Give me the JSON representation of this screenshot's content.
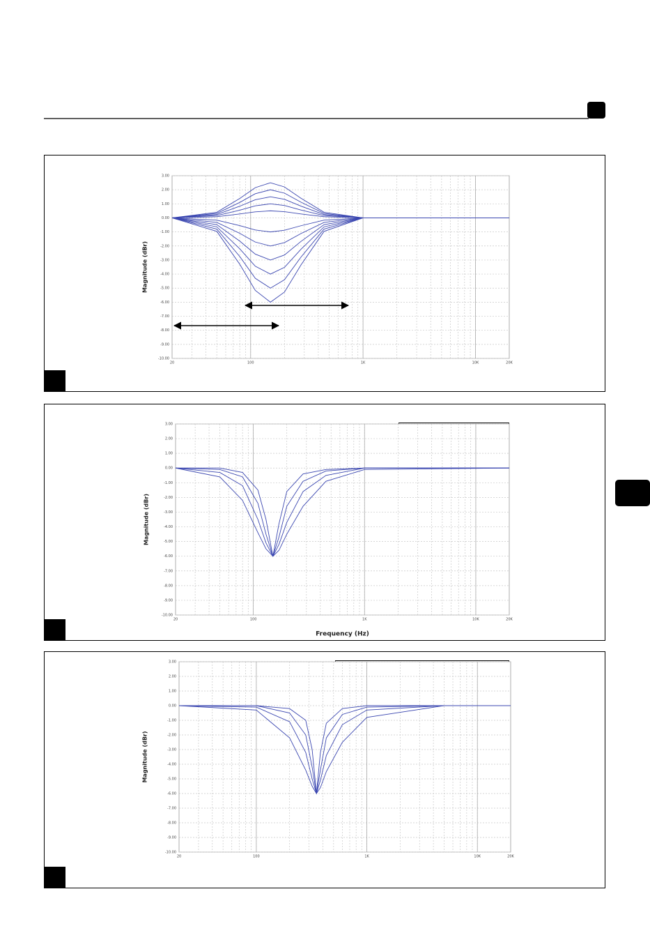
{
  "chart_data": [
    {
      "type": "line",
      "y_label": "Magnitude (dBr)",
      "log_x": true,
      "grid": true,
      "xlim": [
        20,
        20000
      ],
      "ylim": [
        -10,
        3
      ],
      "xticks": [
        20,
        100,
        {
          "value": 1000,
          "label": "1K"
        },
        {
          "value": 10000,
          "label": "10K"
        },
        {
          "value": 20000,
          "label": "20K"
        }
      ],
      "yticks": [
        {
          "value": 3,
          "label": "3.00"
        },
        {
          "value": 2,
          "label": "2.00"
        },
        {
          "value": 1,
          "label": "1.00"
        },
        {
          "value": 0,
          "label": "0.00"
        },
        {
          "value": -1,
          "label": "-1.00"
        },
        {
          "value": -2,
          "label": "-2.00"
        },
        {
          "value": -3,
          "label": "-3.00"
        },
        {
          "value": -4,
          "label": "-4.00"
        },
        {
          "value": -5,
          "label": "-5.00"
        },
        {
          "value": -6,
          "label": "-6.00"
        },
        {
          "value": -7,
          "label": "-7.00"
        },
        {
          "value": -8,
          "label": "-8.00"
        },
        {
          "value": -9,
          "label": "-9.00"
        },
        {
          "value": -10,
          "label": "-10.00"
        }
      ],
      "x": [
        20,
        50,
        80,
        110,
        150,
        200,
        280,
        450,
        1000,
        20000
      ],
      "series": [
        {
          "color": "#3a46b0",
          "values": [
            0,
            0.4,
            1.38,
            2.15,
            2.5,
            2.2,
            1.4,
            0.4,
            0,
            0
          ]
        },
        {
          "color": "#3a46b0",
          "values": [
            0,
            0.32,
            1.1,
            1.72,
            2,
            1.76,
            1.12,
            0.32,
            0,
            0
          ]
        },
        {
          "color": "#3a46b0",
          "values": [
            0,
            0.24,
            0.83,
            1.29,
            1.5,
            1.32,
            0.84,
            0.24,
            0,
            0
          ]
        },
        {
          "color": "#3a46b0",
          "values": [
            0,
            0.16,
            0.55,
            0.86,
            1,
            0.88,
            0.56,
            0.16,
            0,
            0
          ]
        },
        {
          "color": "#3a46b0",
          "values": [
            0,
            0.08,
            0.28,
            0.43,
            0.5,
            0.44,
            0.28,
            0.08,
            0,
            0
          ]
        },
        {
          "color": "#3a46b0",
          "values": [
            0,
            -0.16,
            -0.55,
            -0.86,
            -1,
            -0.88,
            -0.56,
            -0.16,
            0,
            0
          ]
        },
        {
          "color": "#3a46b0",
          "values": [
            0,
            -0.32,
            -1.1,
            -1.72,
            -2,
            -1.76,
            -1.12,
            -0.32,
            0,
            0
          ]
        },
        {
          "color": "#3a46b0",
          "values": [
            0,
            -0.48,
            -1.65,
            -2.58,
            -3,
            -2.64,
            -1.68,
            -0.48,
            0,
            0
          ]
        },
        {
          "color": "#3a46b0",
          "values": [
            0,
            -0.64,
            -2.2,
            -3.44,
            -4,
            -3.52,
            -2.24,
            -0.64,
            0,
            0
          ]
        },
        {
          "color": "#3a46b0",
          "values": [
            0,
            -0.8,
            -2.75,
            -4.3,
            -5,
            -4.4,
            -2.8,
            -0.8,
            0,
            0
          ]
        },
        {
          "color": "#3a46b0",
          "values": [
            0,
            -0.96,
            -3.3,
            -5.16,
            -6,
            -5.28,
            -3.36,
            -0.96,
            0,
            0
          ]
        }
      ]
    },
    {
      "type": "line",
      "y_label": "Magnitude (dBr)",
      "x_label": "Frequency (Hz)",
      "log_x": true,
      "grid": true,
      "xlim": [
        20,
        20000
      ],
      "ylim": [
        -10,
        3
      ],
      "xticks": [
        20,
        100,
        {
          "value": 1000,
          "label": "1K"
        },
        {
          "value": 10000,
          "label": "10K"
        },
        {
          "value": 20000,
          "label": "20K"
        }
      ],
      "yticks": [
        {
          "value": 3,
          "label": "3.00"
        },
        {
          "value": 2,
          "label": "2.00"
        },
        {
          "value": 1,
          "label": "1.00"
        },
        {
          "value": 0,
          "label": "0.00"
        },
        {
          "value": -1,
          "label": "-1.00"
        },
        {
          "value": -2,
          "label": "-2.00"
        },
        {
          "value": -3,
          "label": "-3.00"
        },
        {
          "value": -4,
          "label": "-4.00"
        },
        {
          "value": -5,
          "label": "-5.00"
        },
        {
          "value": -6,
          "label": "-6.00"
        },
        {
          "value": -7,
          "label": "-7.00"
        },
        {
          "value": -8,
          "label": "-8.00"
        },
        {
          "value": -9,
          "label": "-9.00"
        },
        {
          "value": -10,
          "label": "-10.00"
        }
      ],
      "x": [
        20,
        50,
        80,
        110,
        130,
        150,
        170,
        200,
        280,
        450,
        1000,
        20000
      ],
      "series": [
        {
          "color": "#3a46b0",
          "values": [
            0,
            0,
            -0.3,
            -1.5,
            -3.5,
            -6,
            -3.8,
            -1.6,
            -0.4,
            -0.1,
            0,
            0
          ]
        },
        {
          "color": "#3a46b0",
          "values": [
            0,
            -0.1,
            -0.6,
            -2.4,
            -4.5,
            -6,
            -4.7,
            -2.6,
            -0.9,
            -0.2,
            0,
            0
          ]
        },
        {
          "color": "#3a46b0",
          "values": [
            0,
            -0.3,
            -1.2,
            -3.5,
            -5.1,
            -6,
            -5.2,
            -3.7,
            -1.6,
            -0.5,
            0,
            0
          ]
        },
        {
          "color": "#3a46b0",
          "values": [
            0,
            -0.6,
            -2.2,
            -4.4,
            -5.5,
            -6,
            -5.6,
            -4.5,
            -2.6,
            -0.9,
            -0.1,
            0
          ]
        }
      ]
    },
    {
      "type": "line",
      "y_label": "Magnitude (dBr)",
      "log_x": true,
      "grid": true,
      "xlim": [
        20,
        20000
      ],
      "ylim": [
        -10,
        3
      ],
      "xticks": [
        20,
        100,
        {
          "value": 1000,
          "label": "1K"
        },
        {
          "value": 10000,
          "label": "10K"
        },
        {
          "value": 20000,
          "label": "20K"
        }
      ],
      "yticks": [
        {
          "value": 3,
          "label": "3.00"
        },
        {
          "value": 2,
          "label": "2.00"
        },
        {
          "value": 1,
          "label": "1.00"
        },
        {
          "value": 0,
          "label": "0.00"
        },
        {
          "value": -1,
          "label": "-1.00"
        },
        {
          "value": -2,
          "label": "-2.00"
        },
        {
          "value": -3,
          "label": "-3.00"
        },
        {
          "value": -4,
          "label": "-4.00"
        },
        {
          "value": -5,
          "label": "-5.00"
        },
        {
          "value": -6,
          "label": "-6.00"
        },
        {
          "value": -7,
          "label": "-7.00"
        },
        {
          "value": -8,
          "label": "-8.00"
        },
        {
          "value": -9,
          "label": "-9.00"
        },
        {
          "value": -10,
          "label": "-10.00"
        }
      ],
      "x": [
        20,
        100,
        200,
        280,
        320,
        350,
        380,
        430,
        600,
        1000,
        5000,
        20000
      ],
      "series": [
        {
          "color": "#3a46b0",
          "values": [
            0,
            0,
            -0.2,
            -1,
            -3,
            -6,
            -3.2,
            -1.2,
            -0.2,
            0,
            0,
            0
          ]
        },
        {
          "color": "#3a46b0",
          "values": [
            0,
            0,
            -0.5,
            -2,
            -4.2,
            -6,
            -4.4,
            -2.2,
            -0.6,
            -0.1,
            0,
            0
          ]
        },
        {
          "color": "#3a46b0",
          "values": [
            0,
            -0.1,
            -1.1,
            -3.2,
            -5,
            -6,
            -5.1,
            -3.4,
            -1.3,
            -0.3,
            0,
            0
          ]
        },
        {
          "color": "#3a46b0",
          "values": [
            0,
            -0.3,
            -2.2,
            -4.4,
            -5.5,
            -6,
            -5.6,
            -4.5,
            -2.5,
            -0.8,
            0,
            0
          ]
        }
      ]
    }
  ]
}
